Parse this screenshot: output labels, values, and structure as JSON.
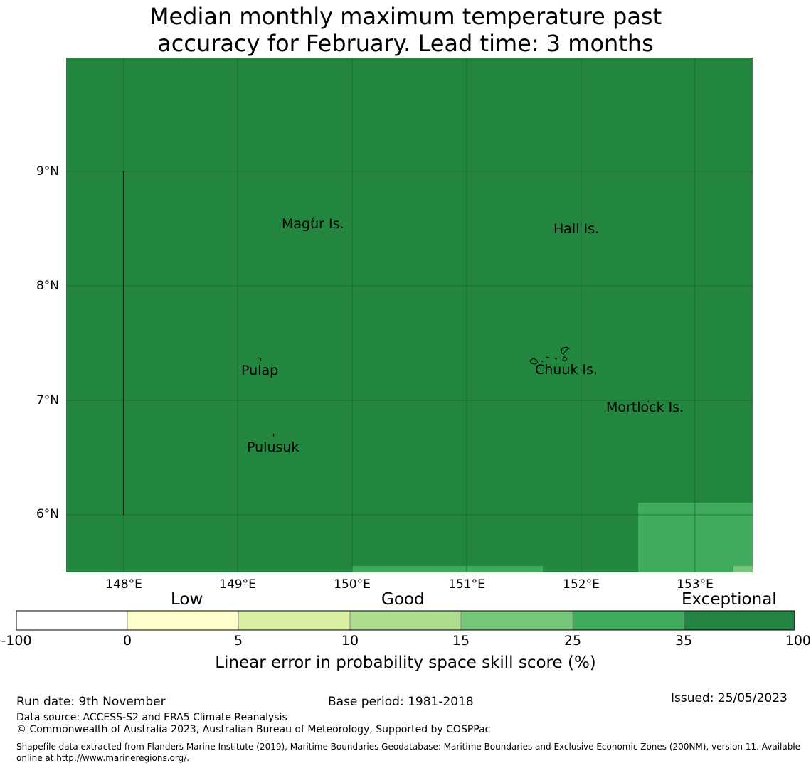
{
  "title_line1": "Median monthly maximum temperature past",
  "title_line2": "accuracy for February. Lead time: 3 months",
  "map": {
    "background_color": "#23863f",
    "lat_labels": [
      "9°N",
      "8°N",
      "7°N",
      "6°N"
    ],
    "lon_labels": [
      "148°E",
      "149°E",
      "150°E",
      "151°E",
      "152°E",
      "153°E"
    ],
    "places": [
      "Magur Is.",
      "Hall Is.",
      "Pulap",
      "Chuuk Is.",
      "Mortlock Is.",
      "Pulusuk"
    ]
  },
  "colorbar": {
    "categories": [
      "Low",
      "Good",
      "Exceptional"
    ],
    "ticks": [
      "-100",
      "0",
      "5",
      "10",
      "15",
      "25",
      "35",
      "100"
    ],
    "colors": [
      "#ffffff",
      "#ffffcc",
      "#d9f0a3",
      "#addd8e",
      "#78c679",
      "#41ab5d",
      "#238443"
    ],
    "label": "Linear error in probability space skill score (%)"
  },
  "footer": {
    "run_date": "Run date: 9th November",
    "base_period": "Base period: 1981-2018",
    "issued": "Issued: 25/05/2023",
    "data_source": "Data source: ACCESS-S2 and ERA5 Climate Reanalysis",
    "copyright": "© Commonwealth of Australia 2023, Australian Bureau of Meteorology, Supported by COSPPac",
    "shapefile_note": "Shapefile data extracted from Flanders Marine Institute (2019), Maritime Boundaries Geodatabase: Maritime Boundaries and Exclusive Economic Zones (200NM), version 11. Available online at http://www.marineregions.org/."
  }
}
